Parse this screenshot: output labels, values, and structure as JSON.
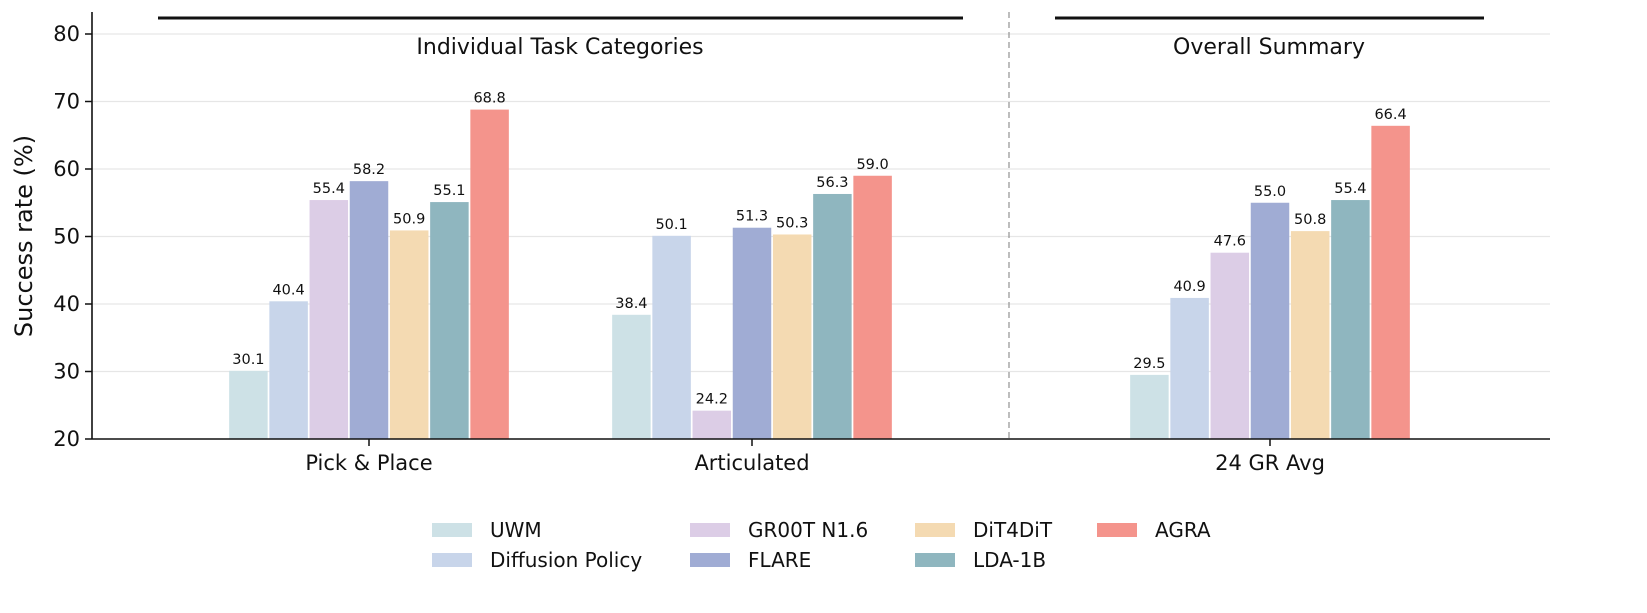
{
  "chart_data": {
    "type": "bar",
    "categories": [
      "Pick & Place",
      "Articulated",
      "24 GR Avg"
    ],
    "section_labels": [
      "Individual Task Categories",
      "Overall Summary"
    ],
    "ylabel": "Success rate (%)",
    "xlabel": "",
    "ylim": [
      20,
      82
    ],
    "yticks": [
      20,
      30,
      40,
      50,
      60,
      70,
      80
    ],
    "grid": true,
    "legend_position": "bottom-center",
    "series": [
      {
        "name": "UWM",
        "color": "#cde1e6",
        "values": [
          30.1,
          38.4,
          29.5
        ]
      },
      {
        "name": "Diffusion Policy",
        "color": "#c8d5ea",
        "values": [
          40.4,
          50.1,
          40.9
        ]
      },
      {
        "name": "GR00T N1.6",
        "color": "#dccde6",
        "values": [
          55.4,
          24.2,
          47.6
        ]
      },
      {
        "name": "FLARE",
        "color": "#a0acd4",
        "values": [
          58.2,
          51.3,
          55.0
        ]
      },
      {
        "name": "DiT4DiT",
        "color": "#f4dab2",
        "values": [
          50.9,
          50.3,
          50.8
        ]
      },
      {
        "name": "LDA-1B",
        "color": "#8fb6bf",
        "values": [
          55.1,
          56.3,
          55.4
        ]
      },
      {
        "name": "AGRA",
        "color": "#f4948c",
        "values": [
          68.8,
          59.0,
          66.4
        ]
      }
    ]
  }
}
